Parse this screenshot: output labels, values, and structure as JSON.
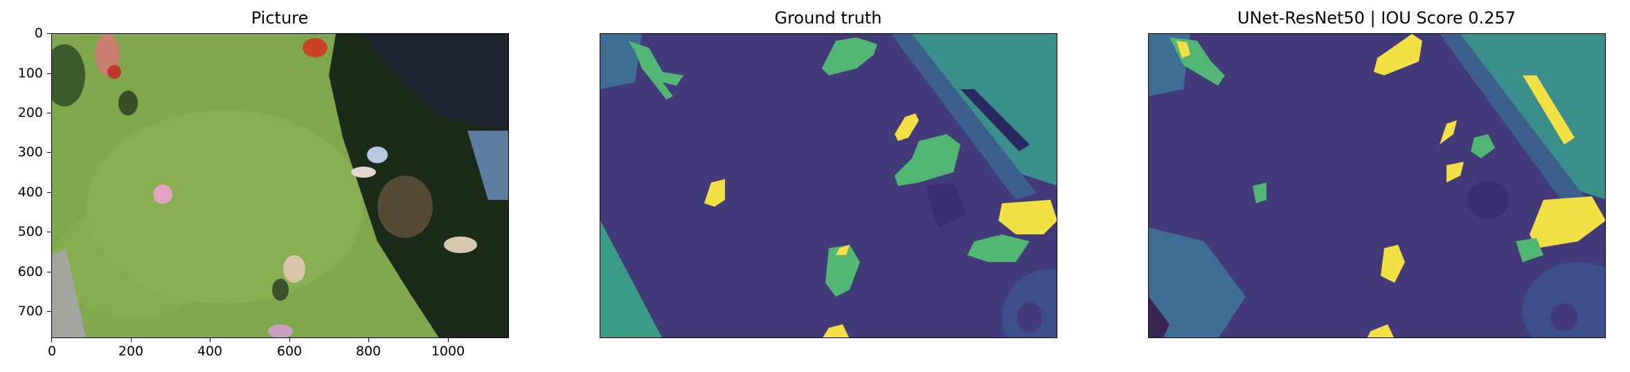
{
  "panels": [
    {
      "title": "Picture"
    },
    {
      "title": "Ground truth"
    },
    {
      "title": "UNet-ResNet50 | IOU Score 0.257"
    }
  ],
  "axes": {
    "y_ticks": [
      "0",
      "100",
      "200",
      "300",
      "400",
      "500",
      "600",
      "700"
    ],
    "x_ticks": [
      "0",
      "200",
      "400",
      "600",
      "800",
      "1000"
    ]
  },
  "colors": {
    "background_class": "#433a7a",
    "mid_class": "#3a8f8a",
    "green_class": "#52b774",
    "yellow_class": "#f2e045",
    "grass": "#7ea84b",
    "shadow": "#1c2a1a"
  }
}
